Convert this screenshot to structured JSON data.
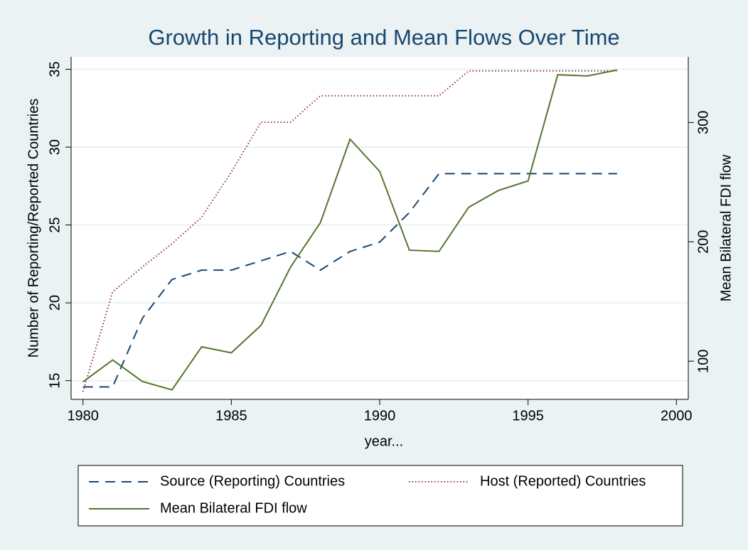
{
  "chart_data": {
    "type": "line",
    "title": "Growth in Reporting and Mean Flows Over Time",
    "x_label": "year...",
    "y_label": "Number of Reporting/Reported Countries",
    "y2_label": "Mean Bilateral FDI flow",
    "x": [
      1980,
      1981,
      1982,
      1983,
      1984,
      1985,
      1986,
      1987,
      1988,
      1989,
      1990,
      1991,
      1992,
      1993,
      1994,
      1995,
      1996,
      1997,
      1998
    ],
    "series": [
      {
        "name": "Source (Reporting) Countries",
        "color": "#1a476f",
        "dash": "dashed",
        "values": [
          14.6,
          14.6,
          19.0,
          21.5,
          22.1,
          22.1,
          22.7,
          23.3,
          22.1,
          23.3,
          23.9,
          25.8,
          28.3,
          28.3,
          28.3,
          28.3,
          28.3,
          28.3,
          28.3
        ]
      },
      {
        "name": "Host (Reported) Countries",
        "color": "#90353b",
        "dash": "dotted",
        "values": [
          14.3,
          20.7,
          22.3,
          23.8,
          25.5,
          28.4,
          31.6,
          31.6,
          33.3,
          33.3,
          33.3,
          33.3,
          33.3,
          34.9,
          34.9,
          34.9,
          34.9,
          34.9,
          34.9
        ]
      },
      {
        "name": "Mean Bilateral FDI flow",
        "color": "#55752f",
        "dash": "solid",
        "axis": "y2",
        "values": [
          82.7,
          101,
          83,
          76,
          112,
          107,
          130,
          179,
          216,
          286,
          259,
          193,
          192,
          229,
          243,
          251,
          340,
          339,
          344
        ]
      }
    ],
    "xlim": [
      1979.6,
      2000.4
    ],
    "xticks": [
      1980,
      1985,
      1990,
      1995,
      2000
    ],
    "ylim": [
      13.8,
      35.8
    ],
    "yticks": [
      15,
      20,
      25,
      30,
      35
    ],
    "y2lim": [
      68,
      355
    ],
    "y2ticks": [
      100,
      200,
      300
    ],
    "grid": true,
    "legend": "bottom"
  }
}
